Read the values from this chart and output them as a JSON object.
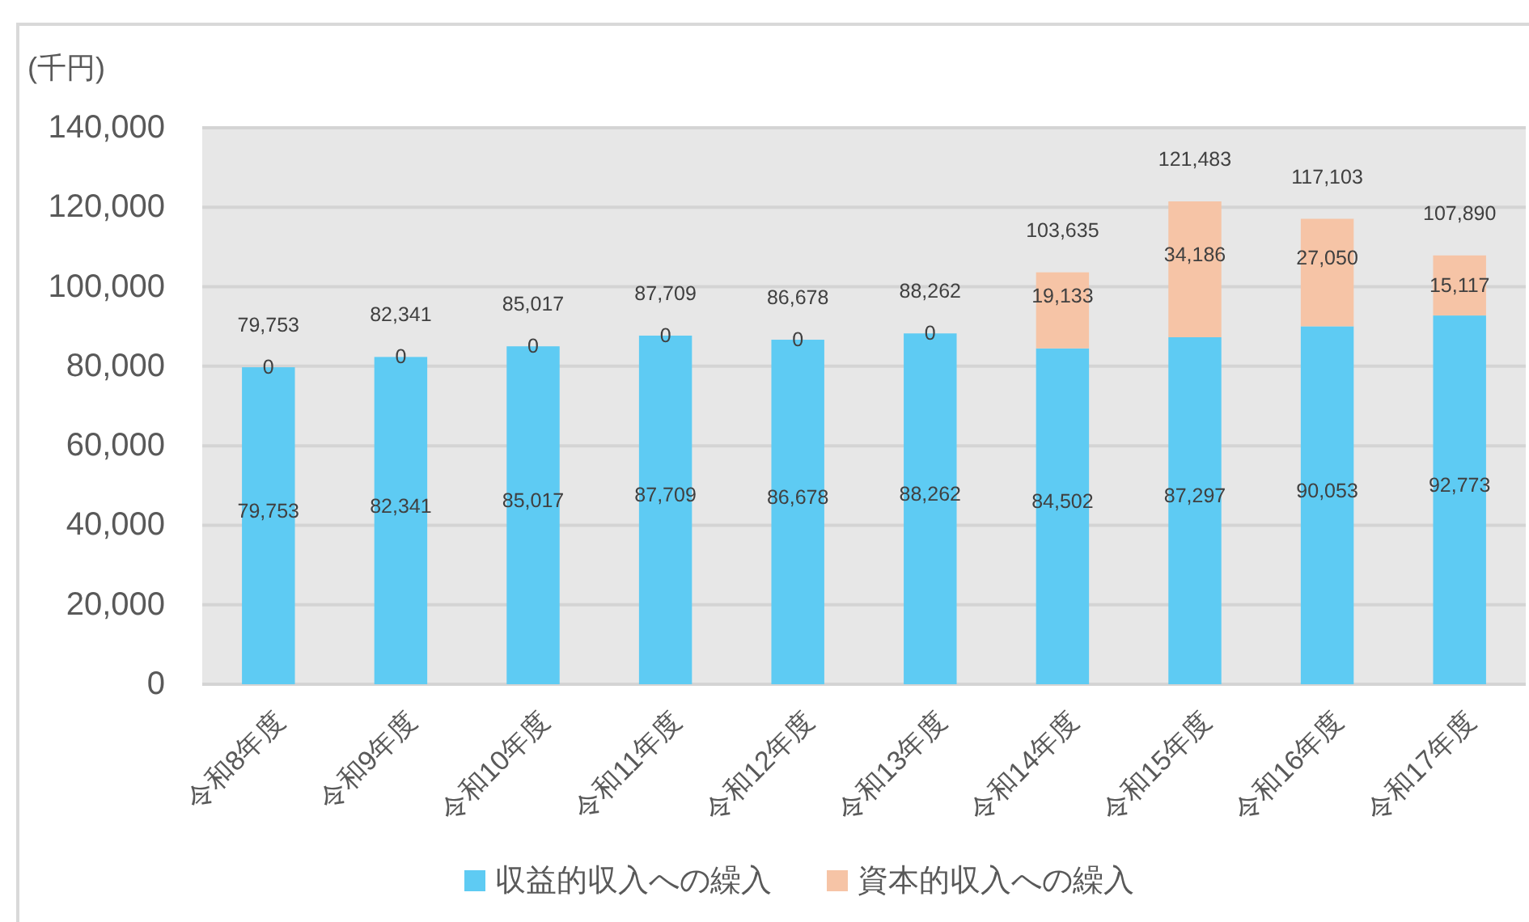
{
  "chart_data": {
    "type": "bar",
    "stacked": true,
    "ylabel": "(千円)",
    "categories": [
      "令和8年度",
      "令和9年度",
      "令和10年度",
      "令和11年度",
      "令和12年度",
      "令和13年度",
      "令和14年度",
      "令和15年度",
      "令和16年度",
      "令和17年度"
    ],
    "series": [
      {
        "name": "収益的収入への繰入",
        "color": "#5ecbf3",
        "values": [
          79753,
          82341,
          85017,
          87709,
          86678,
          88262,
          84502,
          87297,
          90053,
          92773
        ],
        "value_labels": [
          "79,753",
          "82,341",
          "85,017",
          "87,709",
          "86,678",
          "88,262",
          "84,502",
          "87,297",
          "90,053",
          "92,773"
        ]
      },
      {
        "name": "資本的収入への繰入",
        "color": "#f6c4a6",
        "values": [
          0,
          0,
          0,
          0,
          0,
          0,
          19133,
          34186,
          27050,
          15117
        ],
        "value_labels": [
          "0",
          "0",
          "0",
          "0",
          "0",
          "0",
          "19,133",
          "34,186",
          "27,050",
          "15,117"
        ]
      }
    ],
    "ylim": [
      0,
      140000
    ],
    "yticks": [
      0,
      {
        "value": 20000,
        "label": "20,000"
      },
      {
        "value": 40000,
        "label": "40,000"
      },
      {
        "value": 60000,
        "label": "60,000"
      },
      {
        "value": 80000,
        "label": "80,000"
      },
      {
        "value": 100000,
        "label": "100,000"
      },
      {
        "value": 120000,
        "label": "120,000"
      },
      {
        "value": 140000,
        "label": "140,000"
      }
    ],
    "grid": "y",
    "legend": "bottom",
    "totals": [
      "79,753",
      "82,341",
      "85,017",
      "87,709",
      "86,678",
      "88,262",
      "103,635",
      "121,483",
      "117,103",
      "107,890"
    ]
  }
}
